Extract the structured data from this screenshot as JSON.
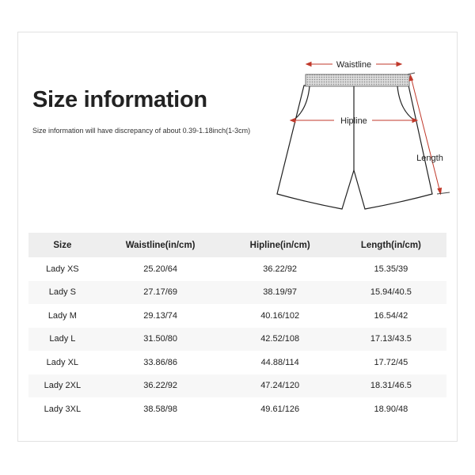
{
  "title": "Size information",
  "subtitle": "Size information will have discrepancy of about 0.39-1.18inch(1-3cm)",
  "diagram": {
    "labels": {
      "waistline": "Waistline",
      "hipline": "Hipline",
      "length": "Length"
    },
    "arrow_color": "#c0392b"
  },
  "table": {
    "headers": [
      "Size",
      "Waistline(in/cm)",
      "Hipline(in/cm)",
      "Length(in/cm)"
    ],
    "rows": [
      [
        "Lady XS",
        "25.20/64",
        "36.22/92",
        "15.35/39"
      ],
      [
        "Lady S",
        "27.17/69",
        "38.19/97",
        "15.94/40.5"
      ],
      [
        "Lady M",
        "29.13/74",
        "40.16/102",
        "16.54/42"
      ],
      [
        "Lady L",
        "31.50/80",
        "42.52/108",
        "17.13/43.5"
      ],
      [
        "Lady XL",
        "33.86/86",
        "44.88/114",
        "17.72/45"
      ],
      [
        "Lady 2XL",
        "36.22/92",
        "47.24/120",
        "18.31/46.5"
      ],
      [
        "Lady 3XL",
        "38.58/98",
        "49.61/126",
        "18.90/48"
      ]
    ]
  }
}
